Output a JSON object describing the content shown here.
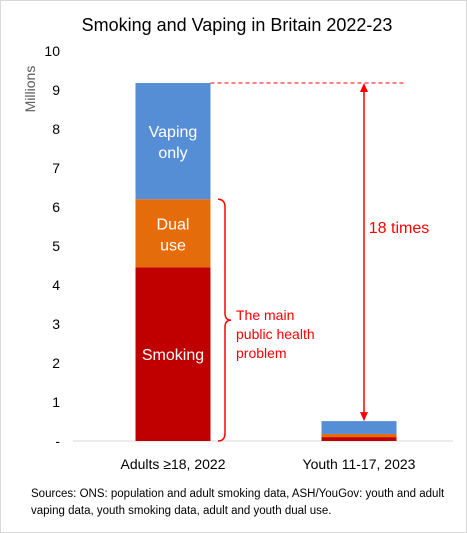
{
  "chart_data": {
    "type": "bar",
    "stacked": true,
    "title": "Smoking and Vaping in Britain 2022-23",
    "ylabel": "Millions",
    "xlabel": "",
    "ylim": [
      0,
      10
    ],
    "yticks": [
      "-",
      "1",
      "2",
      "3",
      "4",
      "5",
      "6",
      "7",
      "8",
      "9",
      "10"
    ],
    "grid": false,
    "categories": [
      "Adults ≥18, 2022",
      "Youth 11-17, 2023"
    ],
    "series": [
      {
        "name": "Smoking",
        "color": "#c00000",
        "values": [
          4.45,
          0.1
        ]
      },
      {
        "name": "Dual use",
        "color": "#e46c0a",
        "values": [
          1.75,
          0.08
        ]
      },
      {
        "name": "Vaping only",
        "color": "#558ed5",
        "values": [
          2.98,
          0.33
        ]
      }
    ],
    "segment_labels": {
      "smoking": "Smoking",
      "dual": [
        "Dual",
        "use"
      ],
      "vaping": [
        "Vaping",
        "only"
      ]
    },
    "annotations": {
      "ratio_label": "18 times",
      "health_note": [
        "The main",
        "public health",
        "problem"
      ],
      "color": "#ff0000"
    }
  },
  "source": "Sources: ONS: population and adult smoking data, ASH/YouGov: youth and adult vaping data, youth smoking data, adult and youth dual use."
}
